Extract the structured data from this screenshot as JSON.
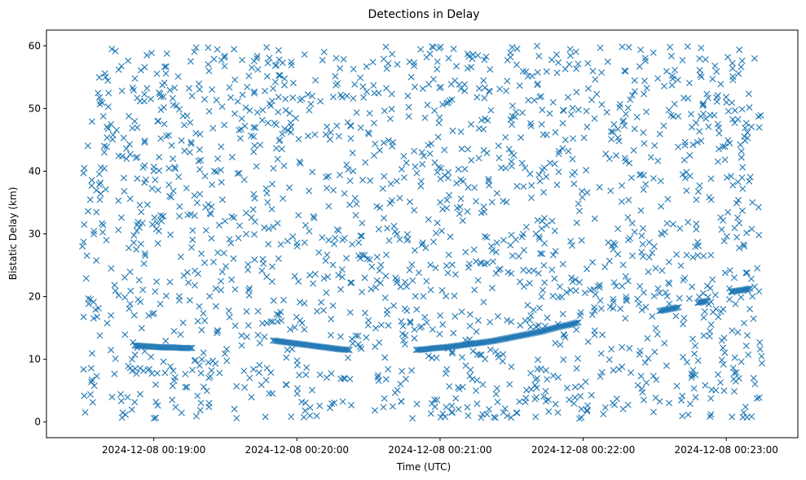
{
  "chart_data": {
    "type": "scatter",
    "title": "Detections in Delay",
    "xlabel": "Time (UTC)",
    "ylabel": "Bistatic Delay (km)",
    "xlim": [
      "2024-12-08 00:18:15",
      "2024-12-08 00:23:30"
    ],
    "ylim": [
      -2.5,
      62.5
    ],
    "xticks": [
      {
        "value": "2024-12-08 00:19:00",
        "label": "2024-12-08 00:19:00"
      },
      {
        "value": "2024-12-08 00:20:00",
        "label": "2024-12-08 00:20:00"
      },
      {
        "value": "2024-12-08 00:21:00",
        "label": "2024-12-08 00:21:00"
      },
      {
        "value": "2024-12-08 00:22:00",
        "label": "2024-12-08 00:22:00"
      },
      {
        "value": "2024-12-08 00:23:00",
        "label": "2024-12-08 00:23:00"
      }
    ],
    "yticks": [
      0,
      10,
      20,
      30,
      40,
      50,
      60
    ],
    "ytick_labels": [
      "0",
      "10",
      "20",
      "30",
      "40",
      "50",
      "60"
    ],
    "marker": "x",
    "color": "#1f77b4",
    "grid": false,
    "series": [
      {
        "description_kind": "target track",
        "points": [
          [
            "2024-12-08 00:18:52",
            12.2
          ],
          [
            "2024-12-08 00:18:56",
            12.1
          ],
          [
            "2024-12-08 00:19:00",
            12.0
          ],
          [
            "2024-12-08 00:19:04",
            11.9
          ],
          [
            "2024-12-08 00:19:08",
            11.9
          ],
          [
            "2024-12-08 00:19:12",
            11.8
          ],
          [
            "2024-12-08 00:19:16",
            11.8
          ],
          [
            "2024-12-08 00:19:50",
            13.0
          ],
          [
            "2024-12-08 00:19:54",
            12.8
          ],
          [
            "2024-12-08 00:19:58",
            12.6
          ],
          [
            "2024-12-08 00:20:02",
            12.4
          ],
          [
            "2024-12-08 00:20:06",
            12.2
          ],
          [
            "2024-12-08 00:20:10",
            12.0
          ],
          [
            "2024-12-08 00:20:14",
            11.8
          ],
          [
            "2024-12-08 00:20:18",
            11.6
          ],
          [
            "2024-12-08 00:20:22",
            11.5
          ],
          [
            "2024-12-08 00:20:50",
            11.5
          ],
          [
            "2024-12-08 00:20:54",
            11.6
          ],
          [
            "2024-12-08 00:20:58",
            11.8
          ],
          [
            "2024-12-08 00:21:02",
            11.9
          ],
          [
            "2024-12-08 00:21:06",
            12.1
          ],
          [
            "2024-12-08 00:21:10",
            12.3
          ],
          [
            "2024-12-08 00:21:14",
            12.5
          ],
          [
            "2024-12-08 00:21:18",
            12.7
          ],
          [
            "2024-12-08 00:21:22",
            12.9
          ],
          [
            "2024-12-08 00:21:26",
            13.2
          ],
          [
            "2024-12-08 00:21:30",
            13.5
          ],
          [
            "2024-12-08 00:21:34",
            13.8
          ],
          [
            "2024-12-08 00:21:38",
            14.1
          ],
          [
            "2024-12-08 00:21:42",
            14.4
          ],
          [
            "2024-12-08 00:21:46",
            14.8
          ],
          [
            "2024-12-08 00:21:50",
            15.2
          ],
          [
            "2024-12-08 00:21:54",
            15.5
          ],
          [
            "2024-12-08 00:21:58",
            15.9
          ],
          [
            "2024-12-08 00:22:32",
            17.7
          ],
          [
            "2024-12-08 00:22:36",
            18.0
          ],
          [
            "2024-12-08 00:22:40",
            18.3
          ],
          [
            "2024-12-08 00:22:48",
            19.0
          ],
          [
            "2024-12-08 00:22:52",
            19.3
          ],
          [
            "2024-12-08 00:23:02",
            20.8
          ],
          [
            "2024-12-08 00:23:06",
            21.0
          ],
          [
            "2024-12-08 00:23:10",
            21.3
          ]
        ]
      },
      {
        "description_kind": "clutter detections",
        "count": 1800,
        "x_range": [
          "2024-12-08 00:18:30",
          "2024-12-08 00:23:15"
        ],
        "y_range": [
          0.5,
          60
        ]
      }
    ]
  }
}
